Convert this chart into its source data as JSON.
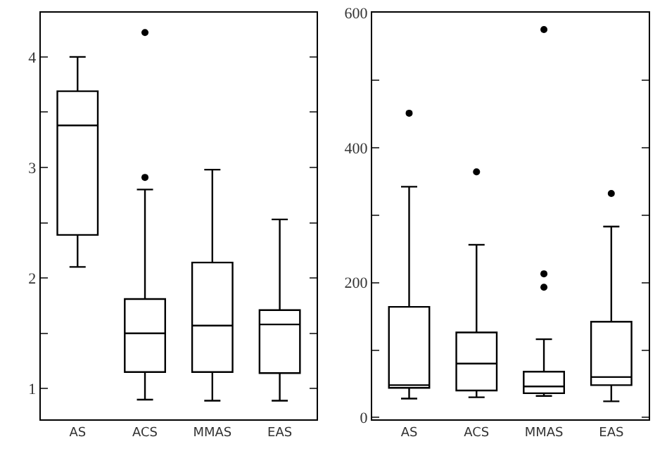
{
  "chart_data": [
    {
      "type": "box",
      "categories": [
        "AS",
        "ACS",
        "MMAS",
        "EAS"
      ],
      "boxes": [
        {
          "low": 2.1,
          "q1": 2.39,
          "median": 3.38,
          "q3": 3.69,
          "high": 4.0
        },
        {
          "low": 0.9,
          "q1": 1.15,
          "median": 1.5,
          "q3": 1.81,
          "high": 2.8,
          "outliers": [
            4.22,
            2.91
          ]
        },
        {
          "low": 0.89,
          "q1": 1.15,
          "median": 1.57,
          "q3": 2.14,
          "high": 2.98
        },
        {
          "low": 0.89,
          "q1": 1.14,
          "median": 1.58,
          "q3": 1.71,
          "high": 2.53
        }
      ],
      "color": "#000000",
      "ylim": [
        0.72,
        4.4
      ],
      "yticks": [
        1,
        {
          "value": 1.5,
          "label": null
        },
        2,
        {
          "value": 2.5,
          "label": null
        },
        3,
        {
          "value": 3.5,
          "label": null
        },
        4
      ]
    },
    {
      "type": "box",
      "categories": [
        "AS",
        "ACS",
        "MMAS",
        "EAS"
      ],
      "boxes": [
        {
          "low": 28,
          "q1": 44,
          "median": 48,
          "q3": 164,
          "high": 342,
          "outliers": [
            451
          ]
        },
        {
          "low": 30,
          "q1": 40,
          "median": 80,
          "q3": 126,
          "high": 256,
          "outliers": [
            364
          ]
        },
        {
          "low": 32,
          "q1": 36,
          "median": 46,
          "q3": 68,
          "high": 116,
          "outliers": [
            575,
            213,
            193
          ]
        },
        {
          "low": 24,
          "q1": 48,
          "median": 60,
          "q3": 142,
          "high": 283,
          "outliers": [
            332
          ]
        }
      ],
      "color": "#000000",
      "ylim": [
        -3,
        600
      ],
      "yticks": [
        0,
        {
          "value": 100,
          "label": null
        },
        200,
        {
          "value": 300,
          "label": null
        },
        400,
        {
          "value": 500,
          "label": null
        },
        600
      ]
    }
  ]
}
